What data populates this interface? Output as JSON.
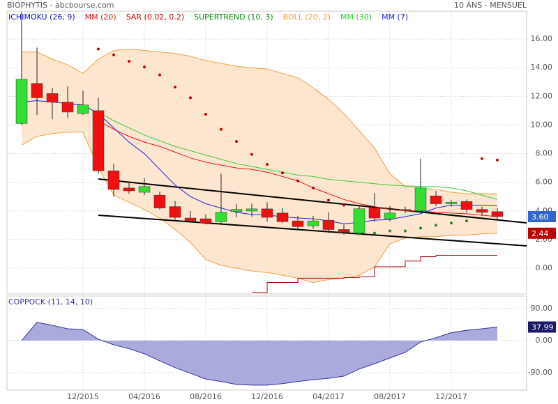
{
  "chart_data": [
    {
      "type": "candlestick",
      "title": "BIOPHYTIS - abcbourse.com",
      "subtitle": "10 ANS - MENSUEL",
      "categories": [
        null,
        null,
        null,
        null,
        "12/2015",
        null,
        null,
        null,
        "04/2016",
        null,
        null,
        null,
        "08/2016",
        null,
        null,
        null,
        "12/2016",
        null,
        null,
        null,
        "04/2017",
        null,
        null,
        null,
        "08/2017",
        null,
        null,
        null,
        "12/2017",
        null,
        null,
        null
      ],
      "open": [
        10.1,
        12.9,
        12.2,
        11.6,
        10.8,
        11.0,
        6.8,
        5.6,
        5.3,
        5.1,
        4.3,
        3.5,
        3.45,
        3.25,
        3.95,
        3.99,
        4.14,
        3.85,
        3.3,
        2.95,
        3.35,
        2.7,
        2.45,
        4.2,
        3.45,
        4.05,
        4.0,
        5.05,
        4.5,
        4.65,
        4.1,
        3.95
      ],
      "high": [
        17.9,
        15.4,
        12.6,
        12.7,
        12.4,
        11.9,
        7.3,
        6.0,
        6.3,
        5.35,
        4.7,
        4.0,
        3.75,
        6.6,
        4.5,
        4.5,
        4.6,
        4.2,
        3.65,
        3.65,
        3.9,
        3.05,
        4.35,
        5.25,
        4.35,
        4.3,
        7.65,
        5.4,
        4.75,
        4.8,
        4.3,
        4.2
      ],
      "low": [
        10.0,
        10.7,
        10.4,
        10.5,
        10.7,
        6.6,
        5.0,
        5.2,
        5.1,
        4.1,
        3.4,
        3.2,
        3.05,
        3.05,
        3.55,
        3.6,
        3.25,
        3.15,
        2.75,
        2.75,
        2.45,
        2.35,
        2.3,
        3.25,
        3.25,
        3.85,
        3.9,
        4.35,
        4.3,
        3.9,
        3.65,
        3.35
      ],
      "close": [
        13.2,
        11.9,
        11.6,
        10.9,
        11.4,
        6.8,
        5.5,
        5.4,
        5.7,
        4.2,
        3.55,
        3.3,
        3.15,
        3.9,
        4.1,
        4.14,
        3.55,
        3.25,
        2.9,
        3.3,
        2.7,
        2.5,
        4.15,
        3.5,
        3.85,
        4.1,
        5.6,
        4.5,
        4.6,
        4.1,
        3.9,
        3.6
      ],
      "up_color": "#33dd33",
      "down_color": "#ee1111",
      "ylim": [
        -1.8,
        17.95
      ],
      "yticks": [
        {
          "value": 0,
          "label": "0.00"
        },
        {
          "value": 2,
          "label": "2.00"
        },
        {
          "value": 4,
          "label": "4.00"
        },
        {
          "value": 6,
          "label": "6.00"
        },
        {
          "value": 8,
          "label": "8.00"
        },
        {
          "value": 10,
          "label": "10.00"
        },
        {
          "value": 12,
          "label": "12.00"
        },
        {
          "value": 14,
          "label": "14.00"
        },
        {
          "value": 16,
          "label": "16.00"
        }
      ],
      "grid": true,
      "indicators": [
        {
          "name": "ICHIMOKU (26, 9)",
          "color": "#1010cc",
          "type": "legend"
        },
        {
          "name": "MM (20)",
          "color": "#ee1111",
          "type": "line",
          "values": [
            null,
            null,
            null,
            null,
            null,
            10.3,
            9.7,
            9.2,
            8.8,
            8.5,
            8.1,
            7.7,
            7.4,
            7.2,
            7.0,
            6.9,
            6.7,
            6.4,
            6.1,
            5.6,
            5.2,
            4.8,
            4.5,
            4.3,
            4.1,
            4.0,
            4.0,
            3.9,
            3.85,
            3.8,
            3.7,
            3.6
          ]
        },
        {
          "name": "SAR (0.02, 0.2)",
          "color": "#cc0000",
          "type": "dots",
          "values": [
            null,
            null,
            null,
            null,
            null,
            15.3,
            14.9,
            14.45,
            14.05,
            13.5,
            12.65,
            11.9,
            10.75,
            9.7,
            8.85,
            7.95,
            7.25,
            6.65,
            6.1,
            5.6,
            4.75,
            4.4,
            2.4,
            2.45,
            2.6,
            2.6,
            2.8,
            3.0,
            3.15,
            3.3,
            7.65,
            7.55
          ],
          "colors": [
            null,
            null,
            null,
            null,
            null,
            "#cc0000",
            "#cc0000",
            "#cc0000",
            "#cc0000",
            "#cc0000",
            "#cc0000",
            "#cc0000",
            "#cc0000",
            "#cc0000",
            "#cc0000",
            "#cc0000",
            "#cc0000",
            "#cc0000",
            "#cc0000",
            "#cc0000",
            "#cc0000",
            "#cc0000",
            "#228822",
            "#228822",
            "#228822",
            "#228822",
            "#228822",
            "#228822",
            "#228822",
            "#228822",
            "#cc0000",
            "#cc0000"
          ]
        },
        {
          "name": "SUPERTREND (10, 3)",
          "color": "#118811",
          "line_color": "#aa0000",
          "type": "step",
          "values": [
            null,
            null,
            null,
            null,
            null,
            null,
            null,
            null,
            null,
            null,
            null,
            null,
            null,
            null,
            null,
            -1.7,
            -1.0,
            -1.0,
            -0.7,
            -0.7,
            -0.7,
            -0.65,
            -0.6,
            0.1,
            0.1,
            0.5,
            0.8,
            0.9,
            0.9,
            0.9,
            0.9,
            0.9
          ]
        },
        {
          "name": "BOLL (20, 2)",
          "color": "#f0a040",
          "fill": "#fde6cf",
          "type": "band",
          "upper": [
            15.1,
            15.1,
            14.6,
            14.2,
            13.6,
            14.6,
            15.2,
            15.3,
            15.2,
            15.1,
            15.0,
            14.8,
            14.5,
            14.3,
            14.1,
            14.0,
            13.9,
            13.6,
            13.3,
            12.6,
            11.8,
            10.8,
            9.6,
            8.4,
            6.6,
            5.7,
            5.6,
            5.5,
            5.3,
            5.2,
            5.2,
            5.2
          ],
          "lower": [
            8.6,
            9.2,
            9.4,
            9.5,
            9.5,
            7.0,
            5.1,
            4.6,
            4.1,
            3.5,
            2.7,
            1.8,
            0.6,
            0.2,
            0.0,
            -0.2,
            -0.3,
            -0.5,
            -0.7,
            -1.0,
            -0.8,
            -0.7,
            -0.5,
            0.1,
            1.7,
            2.1,
            2.2,
            2.2,
            2.3,
            2.3,
            2.4,
            2.44
          ]
        },
        {
          "name": "MM (30)",
          "color": "#33cc33",
          "type": "line",
          "values": [
            null,
            null,
            null,
            null,
            null,
            10.9,
            10.3,
            9.8,
            9.3,
            8.9,
            8.5,
            8.2,
            7.9,
            7.6,
            7.3,
            7.1,
            6.9,
            6.7,
            6.5,
            6.4,
            6.2,
            6.1,
            6.0,
            5.9,
            5.8,
            5.75,
            5.7,
            5.7,
            5.6,
            5.4,
            5.1,
            4.8
          ]
        },
        {
          "name": "MM (7)",
          "color": "#2222dd",
          "type": "line",
          "values": [
            11.6,
            11.7,
            11.6,
            11.5,
            11.4,
            10.8,
            9.8,
            8.8,
            8.0,
            6.9,
            5.8,
            5.0,
            4.5,
            4.2,
            3.9,
            3.75,
            3.7,
            3.6,
            3.5,
            3.45,
            3.3,
            3.1,
            3.2,
            3.35,
            3.4,
            3.6,
            3.8,
            4.2,
            4.4,
            4.4,
            4.4,
            4.35
          ]
        }
      ],
      "badges": [
        {
          "value": 3.6,
          "label": "3.60",
          "color": "#3366cc"
        },
        {
          "value": 2.44,
          "label": "2.44",
          "color": "#bb0000"
        }
      ]
    },
    {
      "type": "area",
      "title": "COPPOCK (11, 14, 10)",
      "values": [
        0,
        51,
        43,
        33,
        31,
        4,
        -12,
        -23,
        -37,
        -57,
        -76,
        -92,
        -108,
        -115,
        -123,
        -125,
        -125,
        -121,
        -115,
        -110,
        -106,
        -100,
        -80,
        -65,
        -49,
        -33,
        -4,
        8,
        22,
        29,
        33,
        37.99
      ],
      "color": "#333399",
      "fill": "#aaaadd",
      "ylim": [
        -139,
        125
      ],
      "yticks": [
        {
          "value": -90,
          "label": "-90.00"
        },
        {
          "value": 0,
          "label": "0.00"
        },
        {
          "value": 90,
          "label": "90.00"
        }
      ],
      "grid": true,
      "badges": [
        {
          "value": 37.99,
          "label": "37.99",
          "color": "#1a1a66"
        }
      ]
    }
  ]
}
